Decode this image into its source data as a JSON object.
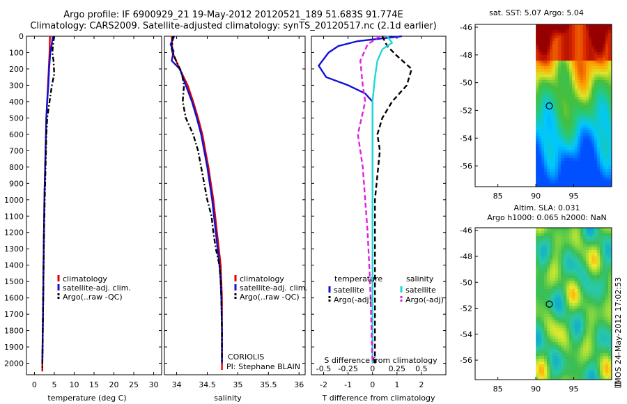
{
  "title": {
    "line1": "Argo profile: IF 6900929_21 19-May-2012 20120521_189 51.683S 91.774E",
    "line2": "Climatology: CARS2009. Satellite-adjusted climatology: synTS_20120517.nc (2.1d earlier)"
  },
  "side_stamp": "IMOS 24-May-2012 17:02:53",
  "colors": {
    "climatology": "#e00000",
    "satellite": "#1010d8",
    "argo": "#000000",
    "cyan": "#20d8d8",
    "magenta": "#e020e0"
  },
  "chart_data": [
    {
      "type": "line",
      "name": "temperature-panel",
      "xlabel": "temperature (deg C)",
      "ylabel": "",
      "xlim": [
        -2,
        32
      ],
      "ylim": [
        2070,
        0
      ],
      "xticks": [
        0,
        5,
        10,
        15,
        20,
        25,
        30
      ],
      "yticks": [
        0,
        100,
        200,
        300,
        400,
        500,
        600,
        700,
        800,
        900,
        1000,
        1100,
        1200,
        1300,
        1400,
        1500,
        1600,
        1700,
        1800,
        1900,
        2000
      ],
      "legend": {
        "placement": "lower-center",
        "entries": [
          "climatology",
          "satellite-adj. clim.",
          "Argo(..raw -QC)"
        ]
      },
      "series": [
        {
          "name": "climatology",
          "style": "solid",
          "color": "#e00000",
          "points": [
            [
              3.9,
              0
            ],
            [
              3.8,
              100
            ],
            [
              3.6,
              200
            ],
            [
              3.4,
              300
            ],
            [
              3.2,
              400
            ],
            [
              3.0,
              500
            ],
            [
              2.9,
              600
            ],
            [
              2.8,
              700
            ],
            [
              2.7,
              800
            ],
            [
              2.6,
              900
            ],
            [
              2.5,
              1000
            ],
            [
              2.4,
              1200
            ],
            [
              2.3,
              1400
            ],
            [
              2.2,
              1600
            ],
            [
              2.1,
              1800
            ],
            [
              2.0,
              2000
            ],
            [
              2.0,
              2050
            ]
          ]
        },
        {
          "name": "satellite-adj. clim.",
          "style": "solid",
          "color": "#1010d8",
          "points": [
            [
              4.6,
              0
            ],
            [
              4.3,
              60
            ],
            [
              4.0,
              100
            ],
            [
              3.7,
              200
            ],
            [
              3.5,
              300
            ],
            [
              3.2,
              400
            ],
            [
              3.0,
              500
            ],
            [
              2.9,
              600
            ],
            [
              2.8,
              700
            ],
            [
              2.7,
              800
            ],
            [
              2.6,
              900
            ],
            [
              2.5,
              1000
            ],
            [
              2.4,
              1200
            ],
            [
              2.3,
              1400
            ],
            [
              2.2,
              1600
            ],
            [
              2.1,
              1800
            ],
            [
              2.0,
              2000
            ]
          ]
        },
        {
          "name": "Argo(..raw -QC)",
          "style": "dashdot",
          "color": "#000000",
          "points": [
            [
              5.0,
              0
            ],
            [
              4.7,
              50
            ],
            [
              4.5,
              100
            ],
            [
              4.8,
              150
            ],
            [
              5.0,
              230
            ],
            [
              4.4,
              300
            ],
            [
              3.8,
              400
            ],
            [
              3.5,
              450
            ],
            [
              3.2,
              500
            ],
            [
              3.1,
              560
            ],
            [
              3.0,
              600
            ],
            [
              2.9,
              700
            ],
            [
              2.8,
              800
            ],
            [
              2.7,
              900
            ],
            [
              2.6,
              1000
            ],
            [
              2.5,
              1100
            ],
            [
              2.4,
              1200
            ],
            [
              2.3,
              1400
            ],
            [
              2.2,
              1600
            ],
            [
              2.1,
              1800
            ],
            [
              2.0,
              2000
            ],
            [
              2.0,
              2040
            ]
          ]
        }
      ]
    },
    {
      "type": "line",
      "name": "salinity-panel",
      "xlabel": "salinity",
      "xlim": [
        33.8,
        36.1
      ],
      "ylim": [
        2070,
        0
      ],
      "xticks": [
        34,
        34.5,
        35,
        35.5,
        36
      ],
      "xticklabels": [
        "34",
        "34.5",
        "35",
        "35.5",
        "36"
      ],
      "legend": {
        "placement": "lower-center",
        "entries": [
          "climatology",
          "satellite-adj. clim.",
          "Argo(..raw -QC)"
        ]
      },
      "annotation": {
        "line1": "CORIOLIS",
        "line2": "PI: Stephane BLAIN"
      },
      "series": [
        {
          "name": "climatology",
          "style": "solid",
          "color": "#e00000",
          "points": [
            [
              33.92,
              0
            ],
            [
              33.93,
              100
            ],
            [
              34.05,
              200
            ],
            [
              34.18,
              300
            ],
            [
              34.27,
              400
            ],
            [
              34.35,
              500
            ],
            [
              34.42,
              600
            ],
            [
              34.47,
              700
            ],
            [
              34.52,
              800
            ],
            [
              34.56,
              900
            ],
            [
              34.6,
              1000
            ],
            [
              34.63,
              1100
            ],
            [
              34.66,
              1200
            ],
            [
              34.69,
              1300
            ],
            [
              34.72,
              1400
            ],
            [
              34.73,
              1500
            ],
            [
              34.74,
              1600
            ],
            [
              34.74,
              1800
            ],
            [
              34.74,
              2040
            ]
          ]
        },
        {
          "name": "satellite-adj. clim.",
          "style": "solid",
          "color": "#1010d8",
          "points": [
            [
              33.96,
              0
            ],
            [
              33.9,
              50
            ],
            [
              33.95,
              90
            ],
            [
              33.92,
              150
            ],
            [
              34.05,
              200
            ],
            [
              34.15,
              300
            ],
            [
              34.25,
              400
            ],
            [
              34.33,
              500
            ],
            [
              34.4,
              600
            ],
            [
              34.45,
              700
            ],
            [
              34.5,
              800
            ],
            [
              34.54,
              900
            ],
            [
              34.58,
              1000
            ],
            [
              34.61,
              1100
            ],
            [
              34.64,
              1200
            ],
            [
              34.67,
              1300
            ],
            [
              34.7,
              1400
            ],
            [
              34.72,
              1500
            ],
            [
              34.73,
              1600
            ],
            [
              34.74,
              1800
            ],
            [
              34.74,
              2000
            ]
          ]
        },
        {
          "name": "Argo(..raw -QC)",
          "style": "dashdot",
          "color": "#000000",
          "points": [
            [
              33.94,
              0
            ],
            [
              33.92,
              80
            ],
            [
              33.98,
              140
            ],
            [
              34.08,
              220
            ],
            [
              34.12,
              300
            ],
            [
              34.1,
              400
            ],
            [
              34.15,
              500
            ],
            [
              34.27,
              600
            ],
            [
              34.35,
              700
            ],
            [
              34.4,
              800
            ],
            [
              34.45,
              900
            ],
            [
              34.5,
              1000
            ],
            [
              34.57,
              1100
            ],
            [
              34.6,
              1200
            ],
            [
              34.64,
              1300
            ],
            [
              34.7,
              1400
            ],
            [
              34.72,
              1500
            ],
            [
              34.73,
              1600
            ],
            [
              34.74,
              1800
            ],
            [
              34.74,
              2000
            ]
          ]
        }
      ]
    },
    {
      "type": "line",
      "name": "difference-panel",
      "xlabel": "T difference from climatology",
      "xlabel2": "S difference from climatology",
      "xlim": [
        -2.5,
        3.0
      ],
      "ylim": [
        2070,
        0
      ],
      "xticks": [
        -2,
        -1,
        0,
        1,
        2
      ],
      "xticklabels": [
        "-2",
        "-1",
        "0",
        "1",
        "2"
      ],
      "xticks2": [
        -2,
        -1,
        0,
        1,
        2
      ],
      "xticklabels2": [
        "-0.5",
        "-0.25",
        "0",
        "0.25",
        "0.5"
      ],
      "legend": {
        "placement": "lower-center",
        "group1_title": "temperature",
        "group2_title": "salinity",
        "group1_entries": [
          "satellite",
          "Argo(-adj)"
        ],
        "group2_entries": [
          "satellite",
          "Argo(-adj)"
        ]
      },
      "series": [
        {
          "name": "T satellite",
          "style": "solid",
          "color": "#1010d8",
          "points": [
            [
              1.2,
              0
            ],
            [
              -0.6,
              30
            ],
            [
              -1.4,
              60
            ],
            [
              -1.8,
              100
            ],
            [
              -2.2,
              180
            ],
            [
              -1.9,
              250
            ],
            [
              -1.0,
              300
            ],
            [
              -0.3,
              350
            ],
            [
              0.0,
              400
            ],
            [
              0.0,
              600
            ],
            [
              0.0,
              1000
            ],
            [
              0.0,
              1500
            ],
            [
              0.0,
              2000
            ]
          ]
        },
        {
          "name": "T Argo(-adj)",
          "style": "dashed",
          "color": "#000000",
          "points": [
            [
              0.4,
              0
            ],
            [
              0.6,
              60
            ],
            [
              1.0,
              120
            ],
            [
              1.6,
              200
            ],
            [
              1.4,
              300
            ],
            [
              0.8,
              400
            ],
            [
              0.4,
              500
            ],
            [
              0.2,
              600
            ],
            [
              0.3,
              700
            ],
            [
              0.2,
              850
            ],
            [
              0.1,
              1000
            ],
            [
              0.1,
              1500
            ],
            [
              0.1,
              2000
            ]
          ]
        },
        {
          "name": "S satellite",
          "style": "solid",
          "color": "#20d8d8",
          "points": [
            [
              0.6,
              0
            ],
            [
              0.8,
              40
            ],
            [
              0.4,
              80
            ],
            [
              0.2,
              150
            ],
            [
              0.1,
              250
            ],
            [
              0.0,
              400
            ],
            [
              0.0,
              700
            ],
            [
              0.0,
              1000
            ],
            [
              0.0,
              1500
            ],
            [
              0.0,
              2000
            ]
          ]
        },
        {
          "name": "S Argo(-adj)",
          "style": "dashed",
          "color": "#e020e0",
          "points": [
            [
              0.3,
              0
            ],
            [
              -0.2,
              50
            ],
            [
              -0.5,
              150
            ],
            [
              -0.4,
              300
            ],
            [
              -0.3,
              400
            ],
            [
              -0.6,
              600
            ],
            [
              -0.4,
              800
            ],
            [
              -0.3,
              1000
            ],
            [
              -0.2,
              1200
            ],
            [
              -0.1,
              1500
            ],
            [
              0.0,
              2000
            ]
          ]
        }
      ]
    },
    {
      "type": "heatmap",
      "name": "sst-map",
      "title": "sat. SST: 5.07 Argo: 5.04",
      "xlim": [
        82,
        100
      ],
      "ylim": [
        -57.5,
        -45.8
      ],
      "xticks": [
        85,
        90,
        95
      ],
      "yticks": [
        -46,
        -48,
        -50,
        -52,
        -54,
        -56
      ],
      "valid_from_lon": 90,
      "marker": {
        "lon": 91.774,
        "lat": -51.683
      }
    },
    {
      "type": "heatmap",
      "name": "sla-map",
      "title": "Altim. SLA: 0.031",
      "subtitle": "Argo h1000: 0.065 h2000: NaN",
      "xlim": [
        82,
        100
      ],
      "ylim": [
        -57.5,
        -45.8
      ],
      "xticks": [
        85,
        90,
        95
      ],
      "yticks": [
        -46,
        -48,
        -50,
        -52,
        -54,
        -56
      ],
      "valid_from_lon": 90,
      "marker": {
        "lon": 91.774,
        "lat": -51.683
      }
    }
  ]
}
